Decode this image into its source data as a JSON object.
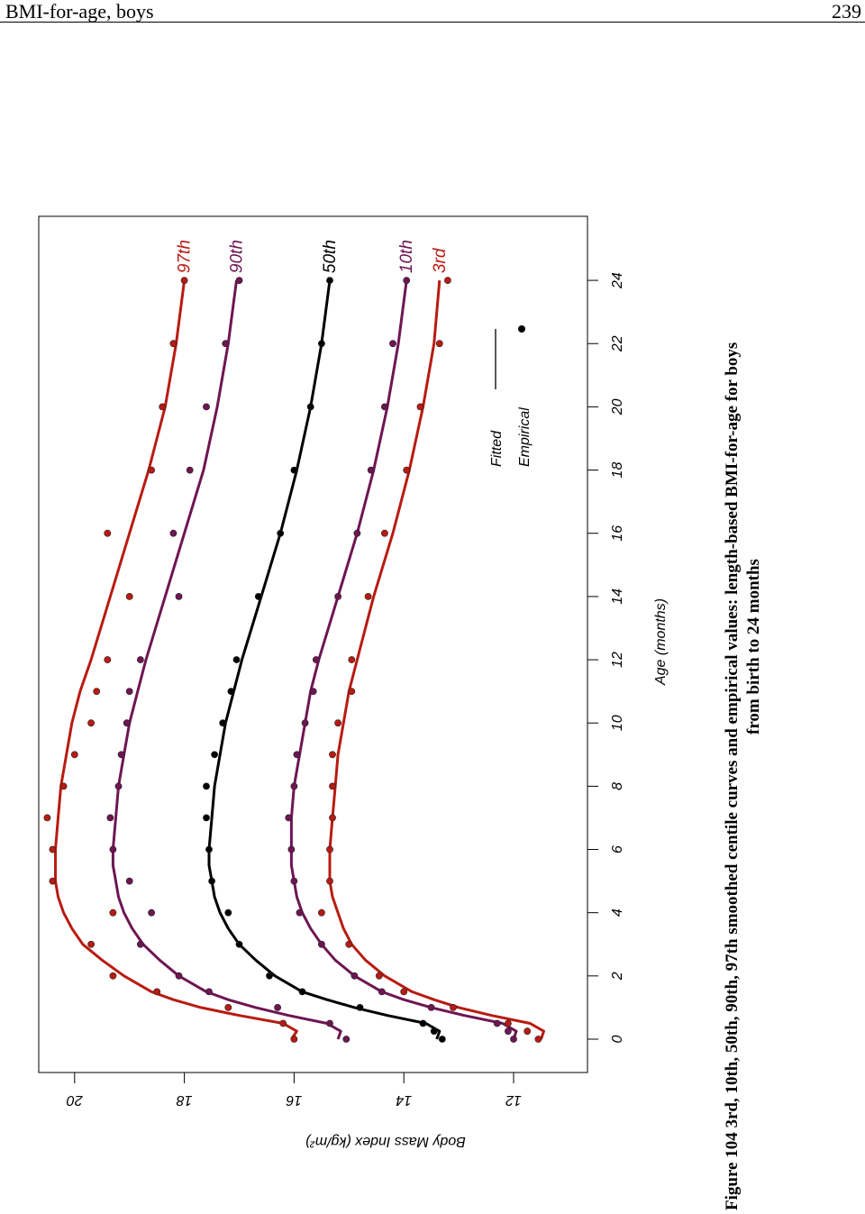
{
  "page": {
    "running_title": "BMI-for-age, boys",
    "page_number": "239"
  },
  "caption": {
    "line1": "Figure 104  3rd, 10th, 50th, 90th, 97th smoothed centile curves and empirical values: length-based BMI-for-age for boys",
    "line2": "from birth to 24 months"
  },
  "chart_data": {
    "type": "line",
    "xlabel": "Age (months)",
    "ylabel": "Body Mass Index (kg/m²)",
    "x_ticks": [
      "0",
      "2",
      "4",
      "6",
      "8",
      "10",
      "12",
      "14",
      "16",
      "18",
      "20",
      "22",
      "24"
    ],
    "y_ticks": [
      "12",
      "14",
      "16",
      "18",
      "20"
    ],
    "xlim": [
      -1,
      26.5
    ],
    "ylim": [
      10.7,
      20.6
    ],
    "legend": {
      "position": "bottom-right",
      "fitted": "Fitted",
      "empirical": "Empirical"
    },
    "series": [
      {
        "name": "97th",
        "color": "#b81b12",
        "fitted_x": [
          0,
          0.25,
          0.5,
          0.75,
          1,
          1.25,
          1.5,
          2,
          2.5,
          3,
          3.5,
          4,
          4.5,
          5,
          5.5,
          6,
          7,
          8,
          9,
          10,
          11,
          12,
          14,
          16,
          18,
          20,
          22,
          24
        ],
        "fitted_y": [
          16.05,
          15.95,
          16.2,
          17.0,
          17.7,
          18.2,
          18.6,
          19.1,
          19.5,
          19.85,
          20.05,
          20.2,
          20.3,
          20.35,
          20.35,
          20.35,
          20.3,
          20.25,
          20.15,
          20.05,
          19.9,
          19.7,
          19.35,
          19.0,
          18.65,
          18.35,
          18.15,
          18.0
        ],
        "empirical_x": [
          0,
          0.5,
          1,
          1.5,
          2,
          3,
          4,
          5,
          6,
          7,
          8,
          9,
          10,
          11,
          12,
          14,
          16,
          18,
          20,
          22,
          24
        ],
        "empirical_y": [
          16.0,
          16.2,
          17.2,
          18.5,
          19.3,
          19.7,
          19.3,
          20.4,
          20.4,
          20.5,
          20.2,
          20.0,
          19.7,
          19.6,
          19.4,
          19.0,
          19.4,
          18.6,
          18.4,
          18.2,
          18.0
        ]
      },
      {
        "name": "90th",
        "color": "#6e1553",
        "fitted_x": [
          0,
          0.25,
          0.5,
          0.75,
          1,
          1.25,
          1.5,
          2,
          2.5,
          3,
          3.5,
          4,
          4.5,
          5,
          5.5,
          6,
          7,
          8,
          9,
          10,
          11,
          12,
          14,
          16,
          18,
          20,
          22,
          24
        ],
        "fitted_y": [
          15.2,
          15.15,
          15.4,
          16.1,
          16.7,
          17.2,
          17.6,
          18.1,
          18.45,
          18.75,
          18.95,
          19.1,
          19.2,
          19.25,
          19.3,
          19.3,
          19.25,
          19.2,
          19.1,
          19.0,
          18.85,
          18.7,
          18.35,
          18.0,
          17.65,
          17.4,
          17.2,
          17.05
        ],
        "empirical_x": [
          0,
          0.5,
          1,
          1.5,
          2,
          3,
          4,
          5,
          6,
          7,
          8,
          9,
          10,
          11,
          12,
          14,
          16,
          18,
          20,
          22,
          24
        ],
        "empirical_y": [
          15.05,
          15.35,
          16.3,
          17.55,
          18.1,
          18.8,
          18.6,
          19.0,
          19.3,
          19.35,
          19.2,
          19.15,
          19.05,
          19.0,
          18.8,
          18.1,
          18.2,
          17.9,
          17.6,
          17.25,
          17.0
        ]
      },
      {
        "name": "50th",
        "color": "#000000",
        "fitted_x": [
          0,
          0.25,
          0.5,
          0.75,
          1,
          1.25,
          1.5,
          2,
          2.5,
          3,
          3.5,
          4,
          4.5,
          5,
          5.5,
          6,
          7,
          8,
          9,
          10,
          11,
          12,
          14,
          16,
          18,
          20,
          22,
          24
        ],
        "fitted_y": [
          13.4,
          13.35,
          13.6,
          14.3,
          14.9,
          15.4,
          15.85,
          16.35,
          16.7,
          17.0,
          17.2,
          17.35,
          17.45,
          17.5,
          17.55,
          17.55,
          17.5,
          17.45,
          17.35,
          17.25,
          17.1,
          16.95,
          16.6,
          16.25,
          15.95,
          15.7,
          15.5,
          15.35
        ],
        "empirical_x": [
          0,
          0.25,
          0.5,
          1,
          1.5,
          2,
          3,
          4,
          5,
          6,
          7,
          8,
          9,
          10,
          11,
          12,
          14,
          16,
          18,
          20,
          22,
          24
        ],
        "empirical_y": [
          13.3,
          13.45,
          13.65,
          14.8,
          15.85,
          16.45,
          17.0,
          17.2,
          17.5,
          17.55,
          17.6,
          17.6,
          17.45,
          17.3,
          17.15,
          17.05,
          16.65,
          16.25,
          16.0,
          15.7,
          15.5,
          15.35
        ]
      },
      {
        "name": "10th",
        "color": "#6e1553",
        "fitted_x": [
          0,
          0.25,
          0.5,
          0.75,
          1,
          1.25,
          1.5,
          2,
          2.5,
          3,
          3.5,
          4,
          4.5,
          5,
          5.5,
          6,
          7,
          8,
          9,
          10,
          11,
          12,
          14,
          16,
          18,
          20,
          22,
          24
        ],
        "fitted_y": [
          12.0,
          11.95,
          12.2,
          12.9,
          13.5,
          14.0,
          14.4,
          14.9,
          15.25,
          15.5,
          15.7,
          15.85,
          15.95,
          16.0,
          16.05,
          16.05,
          16.05,
          16.0,
          15.9,
          15.8,
          15.7,
          15.55,
          15.2,
          14.85,
          14.55,
          14.3,
          14.1,
          13.95
        ],
        "empirical_x": [
          0,
          0.25,
          0.5,
          1,
          1.5,
          2,
          3,
          4,
          5,
          6,
          7,
          8,
          9,
          10,
          11,
          12,
          14,
          16,
          18,
          20,
          22,
          24
        ],
        "empirical_y": [
          12.0,
          12.1,
          12.3,
          13.5,
          14.4,
          14.9,
          15.5,
          15.9,
          16.0,
          16.05,
          16.1,
          16.0,
          15.95,
          15.8,
          15.65,
          15.6,
          15.2,
          14.85,
          14.6,
          14.35,
          14.2,
          13.95
        ]
      },
      {
        "name": "3rd",
        "color": "#b81b12",
        "fitted_x": [
          0,
          0.25,
          0.5,
          0.75,
          1,
          1.25,
          1.5,
          2,
          2.5,
          3,
          3.5,
          4,
          4.5,
          5,
          5.5,
          6,
          7,
          8,
          9,
          10,
          11,
          12,
          14,
          16,
          18,
          20,
          22,
          24
        ],
        "fitted_y": [
          11.5,
          11.45,
          11.7,
          12.4,
          13.0,
          13.45,
          13.85,
          14.35,
          14.7,
          14.95,
          15.1,
          15.2,
          15.3,
          15.35,
          15.35,
          15.35,
          15.3,
          15.25,
          15.2,
          15.1,
          15.0,
          14.85,
          14.55,
          14.2,
          13.9,
          13.65,
          13.45,
          13.35
        ],
        "empirical_x": [
          0,
          0.25,
          0.5,
          1,
          1.5,
          2,
          3,
          4,
          5,
          6,
          7,
          8,
          9,
          10,
          11,
          12,
          14,
          16,
          18,
          20,
          22,
          24
        ],
        "empirical_y": [
          11.55,
          11.75,
          12.1,
          13.1,
          14.0,
          14.45,
          15.0,
          15.5,
          15.35,
          15.35,
          15.3,
          15.3,
          15.3,
          15.2,
          14.95,
          14.95,
          14.65,
          14.35,
          13.95,
          13.7,
          13.35,
          13.2
        ]
      }
    ]
  }
}
